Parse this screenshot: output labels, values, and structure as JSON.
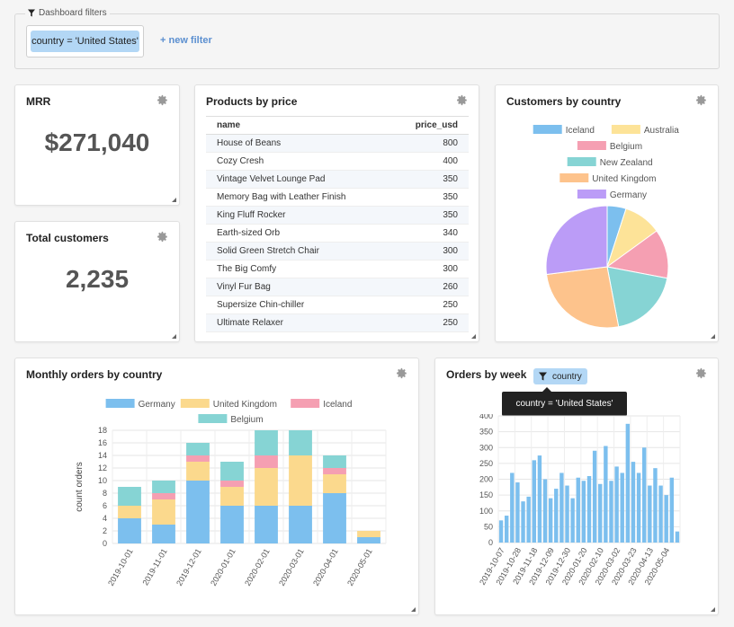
{
  "filters": {
    "label": "Dashboard filters",
    "chip": "country = 'United States'",
    "new_filter": "+ new filter"
  },
  "mrr": {
    "title": "MRR",
    "value": "$271,040"
  },
  "total_customers": {
    "title": "Total customers",
    "value": "2,235"
  },
  "products": {
    "title": "Products by price",
    "columns": [
      "name",
      "price_usd"
    ],
    "rows": [
      [
        "House of Beans",
        "800"
      ],
      [
        "Cozy Cresh",
        "400"
      ],
      [
        "Vintage Velvet Lounge Pad",
        "350"
      ],
      [
        "Memory Bag with Leather Finish",
        "350"
      ],
      [
        "King Fluff Rocker",
        "350"
      ],
      [
        "Earth-sized Orb",
        "340"
      ],
      [
        "Solid Green Stretch Chair",
        "300"
      ],
      [
        "The Big Comfy",
        "300"
      ],
      [
        "Vinyl Fur Bag",
        "260"
      ],
      [
        "Supersize Chin-chiller",
        "250"
      ],
      [
        "Ultimate Relaxer",
        "250"
      ]
    ]
  },
  "colors": {
    "germany": "#7cbfee",
    "uk": "#fbd98d",
    "iceland": "#f59fb2",
    "belgium": "#86d4d4",
    "australia": "#fde398",
    "new_zealand": "#8ad8d6",
    "gray": "#888888"
  },
  "customers_by_country": {
    "title": "Customers by country"
  },
  "monthly_orders": {
    "title": "Monthly orders by country"
  },
  "orders_by_week": {
    "title": "Orders by week",
    "pill": "country",
    "tooltip": "country = 'United States'"
  },
  "chart_data": [
    {
      "type": "pie",
      "title": "Customers by country",
      "labels": [
        "Iceland",
        "Australia",
        "Belgium",
        "New Zealand",
        "United Kingdom",
        "Germany"
      ],
      "values": [
        5,
        10,
        13,
        19,
        26,
        27
      ],
      "colors": [
        "#7cbfee",
        "#fde398",
        "#f59fb2",
        "#86d4d4",
        "#fdc38c",
        "#bb9cf7"
      ]
    },
    {
      "type": "bar",
      "stacked": true,
      "title": "Monthly orders by country",
      "ylabel": "count orders",
      "ylim": [
        0,
        18
      ],
      "yticks": [
        0,
        2,
        4,
        6,
        8,
        10,
        12,
        14,
        16,
        18
      ],
      "categories": [
        "2019-10-01",
        "2019-11-01",
        "2019-12-01",
        "2020-01-01",
        "2020-02-01",
        "2020-03-01",
        "2020-04-01",
        "2020-05-01"
      ],
      "series": [
        {
          "name": "Germany",
          "color": "#7cbfee",
          "values": [
            4,
            3,
            10,
            6,
            6,
            6,
            8,
            1
          ]
        },
        {
          "name": "United Kingdom",
          "color": "#fbd98d",
          "values": [
            2,
            4,
            3,
            3,
            6,
            8,
            3,
            1
          ]
        },
        {
          "name": "Iceland",
          "color": "#f59fb2",
          "values": [
            0,
            1,
            1,
            1,
            2,
            0,
            1,
            0
          ]
        },
        {
          "name": "Belgium",
          "color": "#86d4d4",
          "values": [
            3,
            2,
            2,
            3,
            4,
            4,
            2,
            0
          ]
        }
      ]
    },
    {
      "type": "bar",
      "title": "Orders by week",
      "ylim": [
        0,
        400
      ],
      "yticks": [
        0,
        50,
        100,
        150,
        200,
        250,
        300,
        350,
        400
      ],
      "xtick_labels": [
        "2019-10-07",
        "2019-10-28",
        "2019-11-18",
        "2019-12-09",
        "2019-12-30",
        "2020-01-20",
        "2020-02-10",
        "2020-03-02",
        "2020-03-23",
        "2020-04-13",
        "2020-05-04"
      ],
      "values": [
        70,
        85,
        220,
        190,
        130,
        145,
        260,
        275,
        200,
        140,
        170,
        220,
        180,
        140,
        205,
        195,
        210,
        290,
        185,
        305,
        195,
        240,
        220,
        375,
        255,
        220,
        300,
        180,
        235,
        180,
        150,
        205,
        35
      ],
      "color": "#7cbfee"
    }
  ]
}
